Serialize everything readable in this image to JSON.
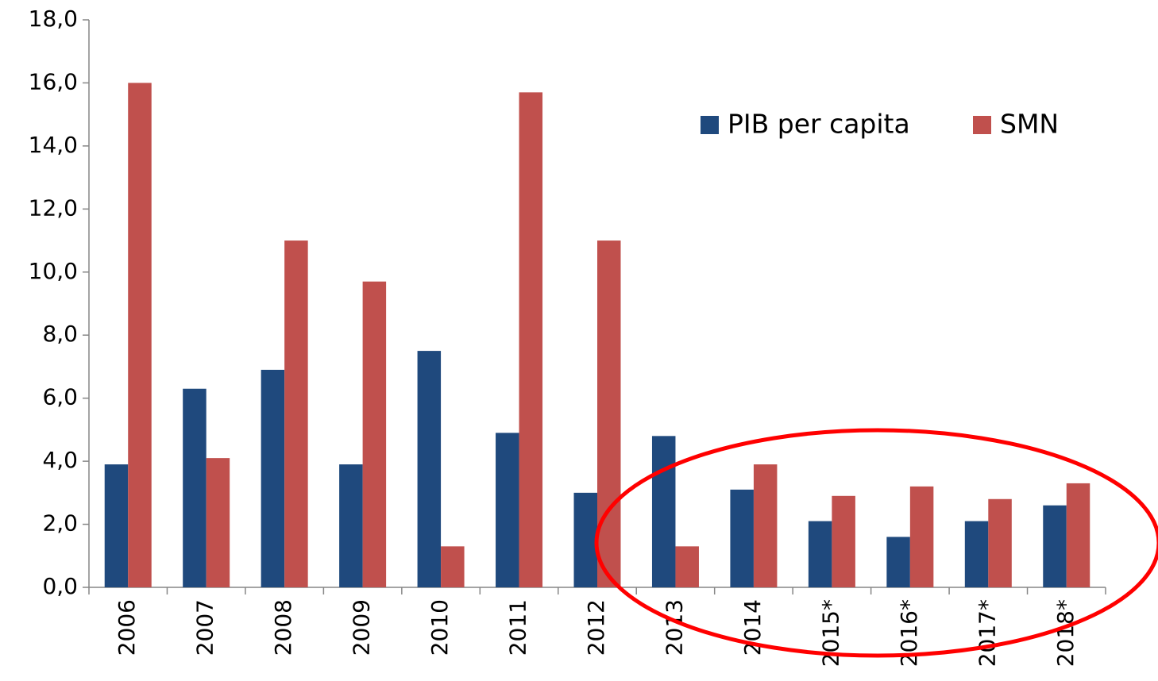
{
  "chart_data": {
    "type": "bar",
    "categories": [
      "2006",
      "2007",
      "2008",
      "2009",
      "2010",
      "2011",
      "2012",
      "2013",
      "2014",
      "2015*",
      "2016*",
      "2017*",
      "2018*"
    ],
    "series": [
      {
        "name": "PIB per capita",
        "color": "#1f497d",
        "values": [
          3.9,
          6.3,
          6.9,
          3.9,
          7.5,
          4.9,
          3.0,
          4.8,
          3.1,
          2.1,
          1.6,
          2.1,
          2.6
        ]
      },
      {
        "name": "SMN",
        "color": "#c0504d",
        "values": [
          16.0,
          4.1,
          11.0,
          9.7,
          1.3,
          15.7,
          11.0,
          1.3,
          3.9,
          2.9,
          3.2,
          2.8,
          3.3
        ]
      }
    ],
    "ylim": [
      0,
      18
    ],
    "yticks": [
      {
        "value": 0,
        "label": "0,0"
      },
      {
        "value": 2,
        "label": "2,0"
      },
      {
        "value": 4,
        "label": "4,0"
      },
      {
        "value": 6,
        "label": "6,0"
      },
      {
        "value": 8,
        "label": "8,0"
      },
      {
        "value": 10,
        "label": "10,0"
      },
      {
        "value": 12,
        "label": "12,0"
      },
      {
        "value": 14,
        "label": "14,0"
      },
      {
        "value": 16,
        "label": "16,0"
      },
      {
        "value": 18,
        "label": "18,0"
      }
    ],
    "grid": false
  }
}
